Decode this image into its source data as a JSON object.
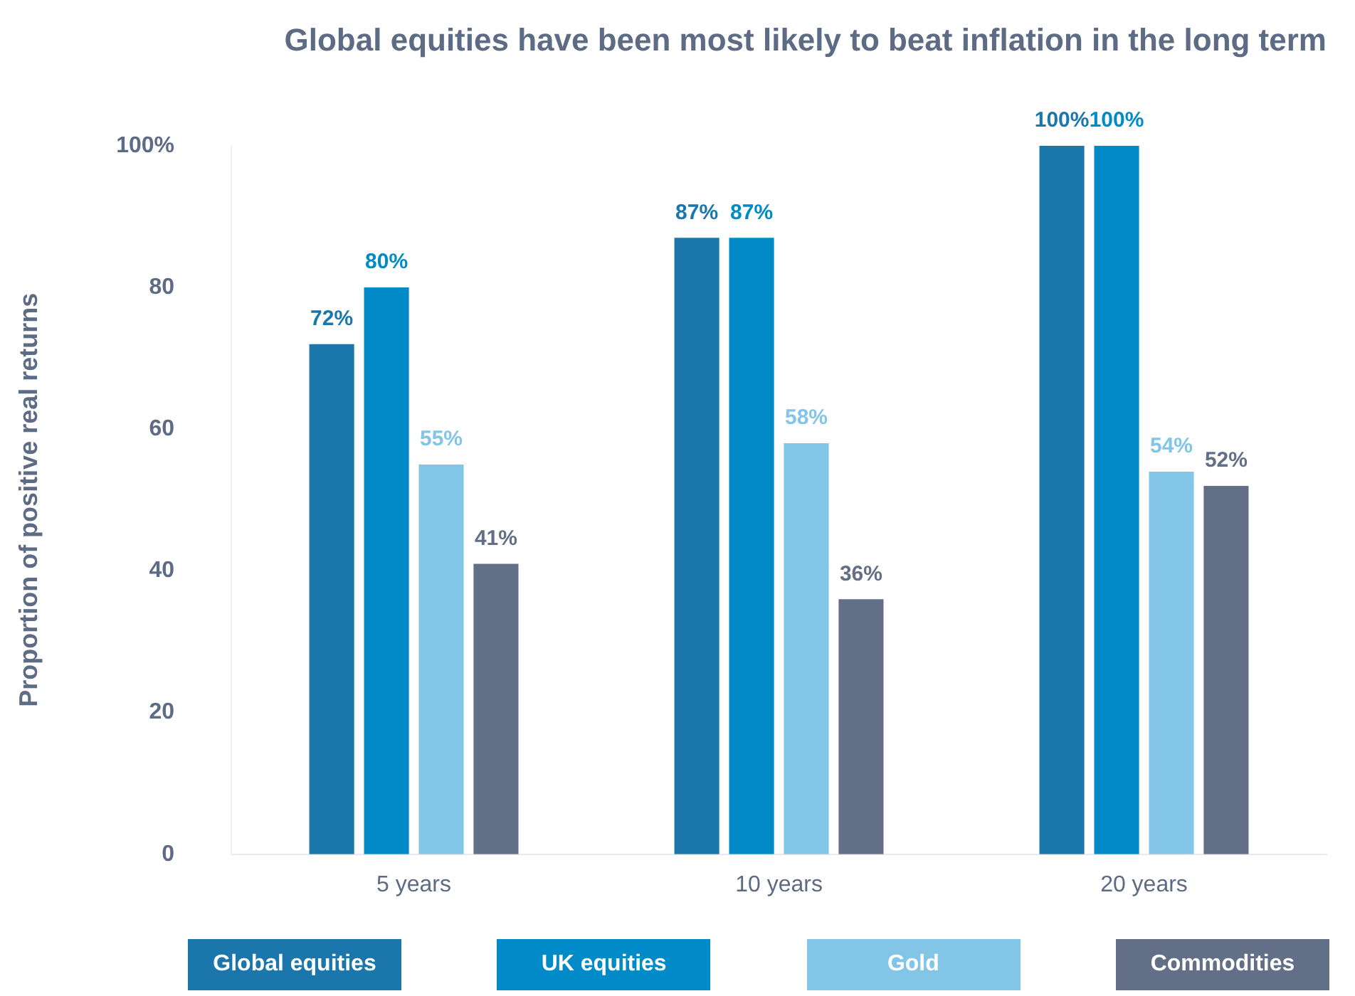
{
  "chart_data": {
    "type": "bar",
    "title": "Global equities have been most likely to beat inflation in the long term",
    "ylabel": "Proportion of positive real returns",
    "categories": [
      "5 years",
      "10 years",
      "20 years"
    ],
    "series": [
      {
        "name": "Global equities",
        "color": "#1b76ac",
        "values": [
          72,
          87,
          100
        ],
        "value_labels": [
          "72%",
          "87%",
          "100%"
        ]
      },
      {
        "name": "UK equities",
        "color": "#008bc8",
        "values": [
          80,
          87,
          100
        ],
        "value_labels": [
          "80%",
          "87%",
          "100%"
        ]
      },
      {
        "name": "Gold",
        "color": "#82c5e7",
        "values": [
          55,
          58,
          54
        ],
        "value_labels": [
          "55%",
          "58%",
          "54%"
        ]
      },
      {
        "name": "Commodities",
        "color": "#636e87",
        "values": [
          41,
          36,
          52
        ],
        "value_labels": [
          "41%",
          "36%",
          "52%"
        ]
      }
    ],
    "ylim": [
      0,
      100
    ],
    "yticks": [
      0,
      20,
      40,
      60,
      80,
      {
        "value": 100,
        "label": "100%"
      }
    ],
    "grid": false,
    "legend": "bottom"
  }
}
